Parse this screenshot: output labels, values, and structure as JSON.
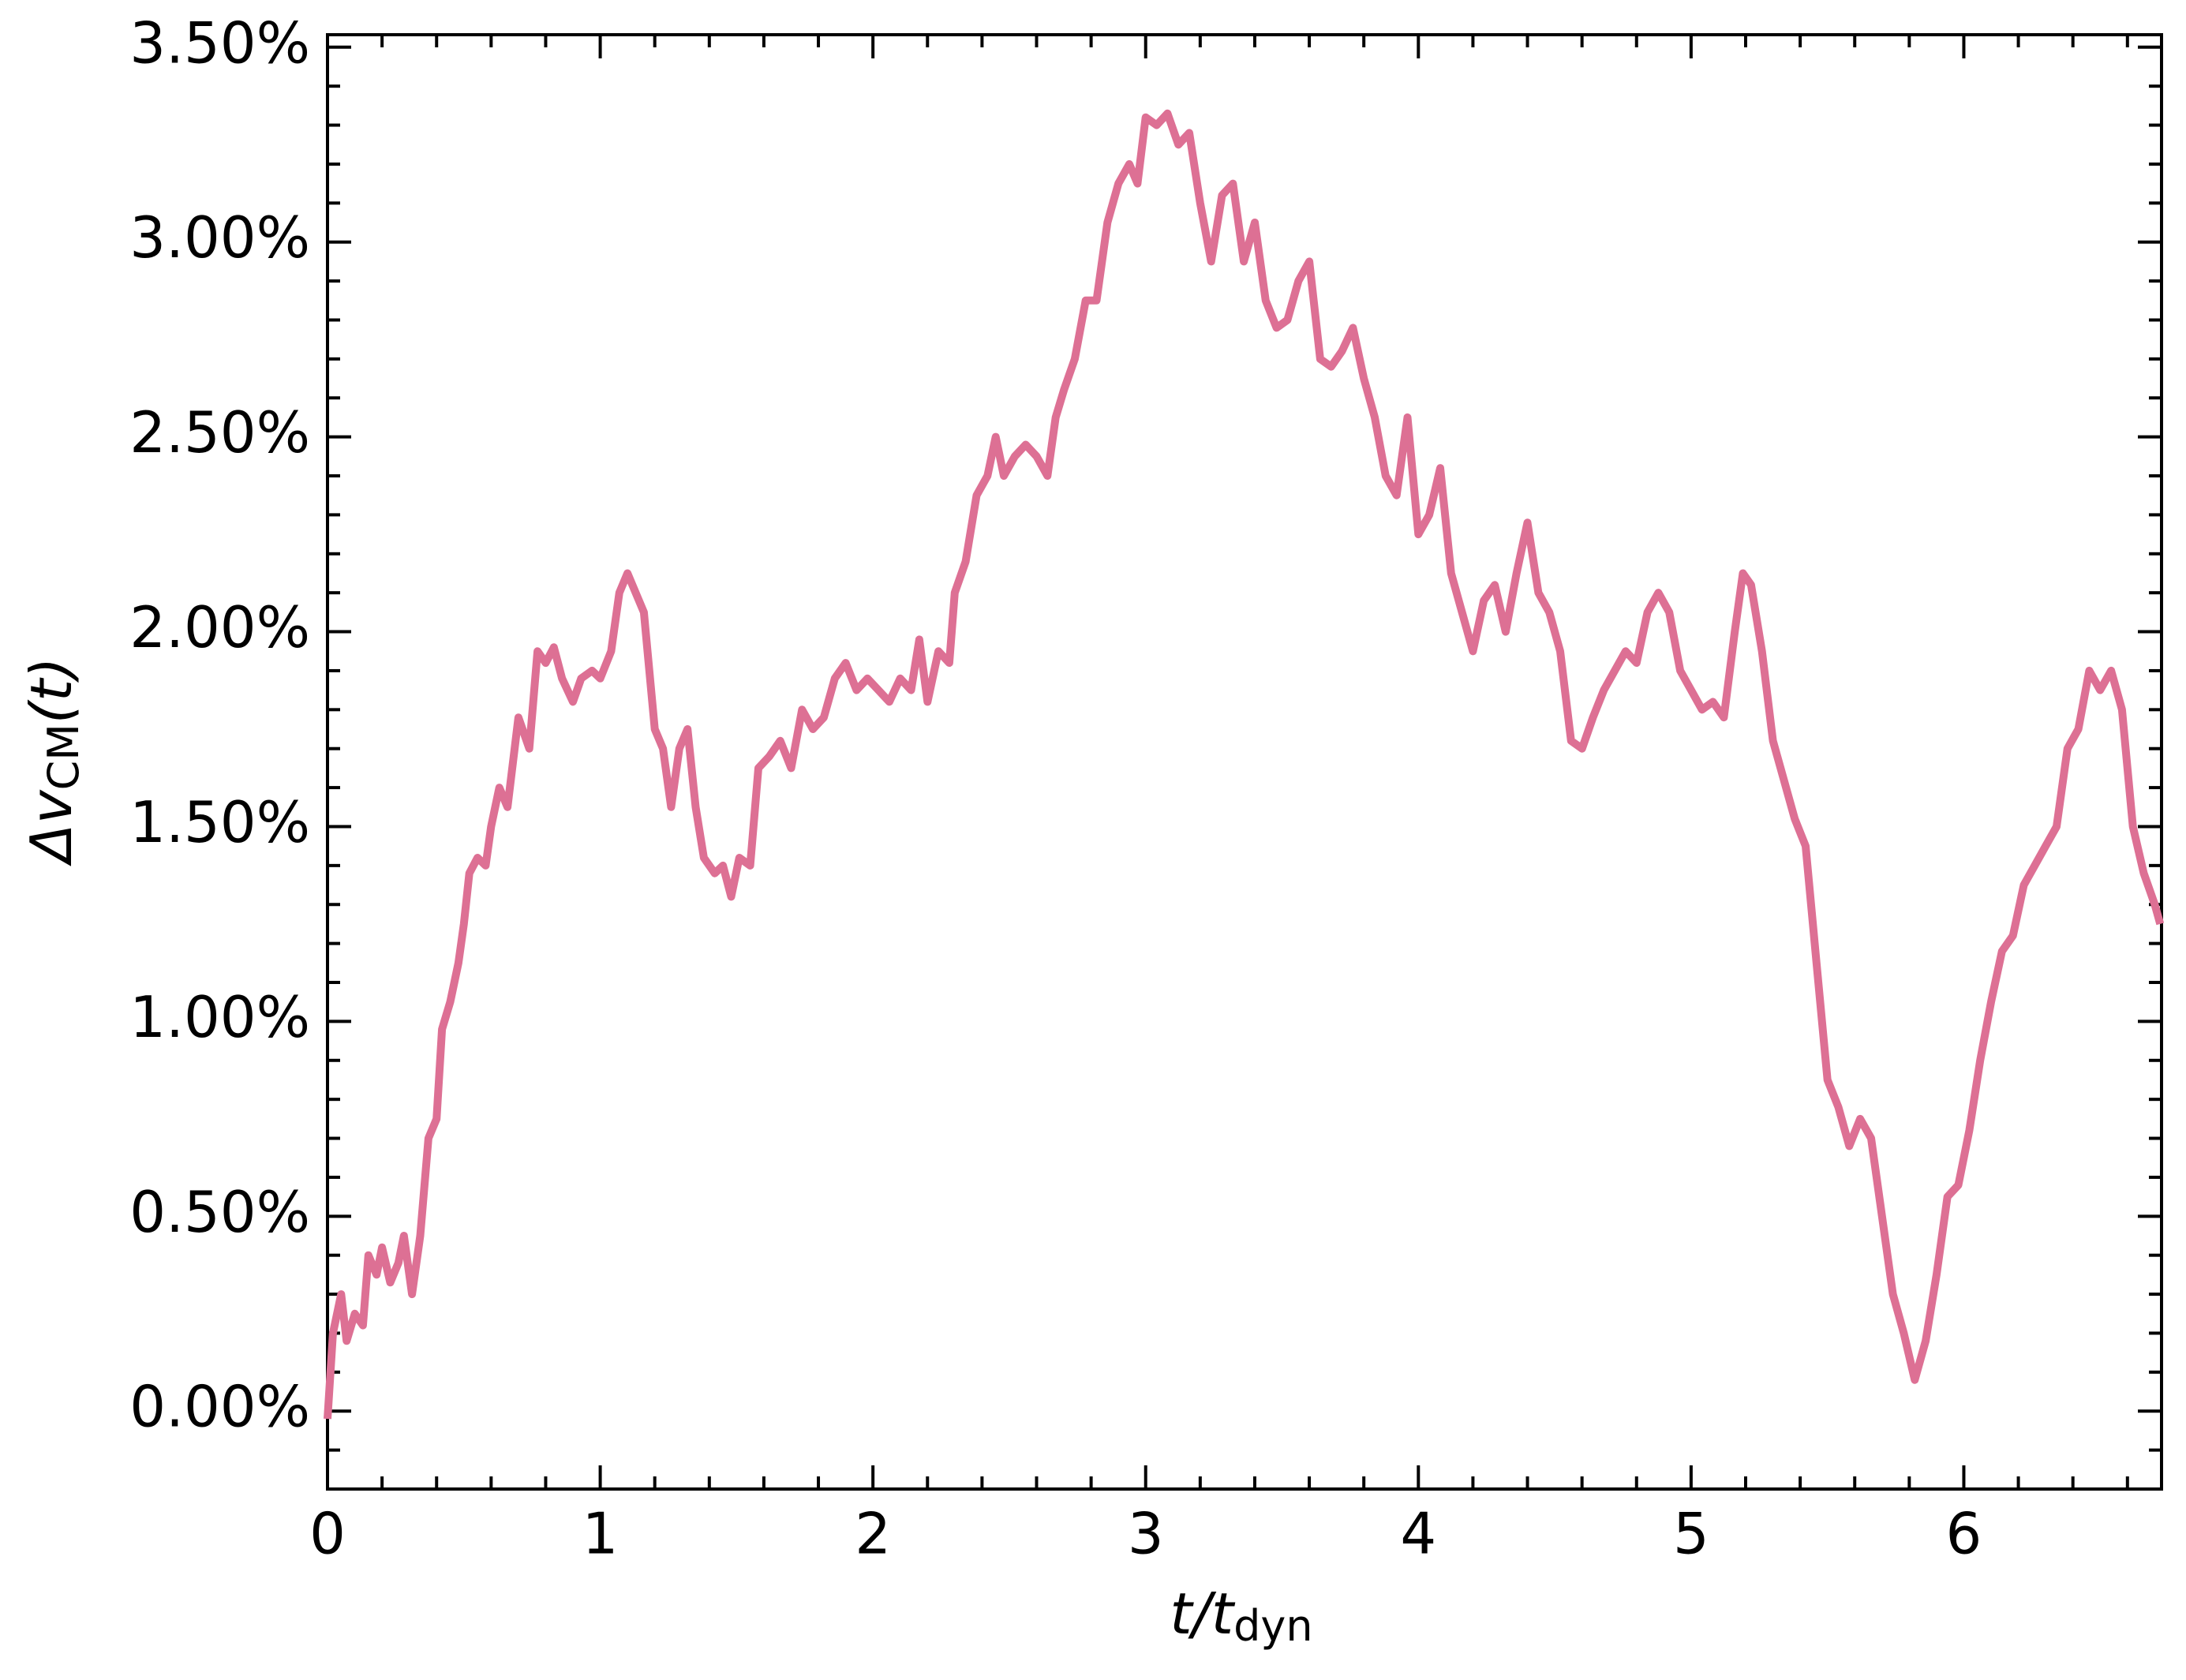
{
  "chart_data": {
    "type": "line",
    "xlabel": [
      "t/t",
      "dyn"
    ],
    "ylabel": [
      "Δv",
      "CM",
      "(t)"
    ],
    "x": [
      0,
      0.02,
      0.05,
      0.07,
      0.1,
      0.13,
      0.15,
      0.18,
      0.2,
      0.23,
      0.26,
      0.28,
      0.31,
      0.34,
      0.37,
      0.4,
      0.42,
      0.45,
      0.48,
      0.5,
      0.52,
      0.55,
      0.58,
      0.6,
      0.63,
      0.66,
      0.7,
      0.74,
      0.77,
      0.8,
      0.83,
      0.86,
      0.9,
      0.93,
      0.97,
      1.0,
      1.04,
      1.07,
      1.1,
      1.13,
      1.16,
      1.2,
      1.23,
      1.26,
      1.29,
      1.32,
      1.35,
      1.38,
      1.42,
      1.45,
      1.48,
      1.51,
      1.55,
      1.58,
      1.62,
      1.66,
      1.7,
      1.74,
      1.78,
      1.82,
      1.86,
      1.9,
      1.94,
      1.98,
      2.02,
      2.06,
      2.1,
      2.14,
      2.17,
      2.2,
      2.24,
      2.28,
      2.3,
      2.34,
      2.38,
      2.42,
      2.45,
      2.48,
      2.52,
      2.56,
      2.6,
      2.64,
      2.67,
      2.7,
      2.74,
      2.78,
      2.82,
      2.86,
      2.9,
      2.94,
      2.97,
      3.0,
      3.04,
      3.08,
      3.12,
      3.16,
      3.2,
      3.24,
      3.28,
      3.32,
      3.36,
      3.4,
      3.44,
      3.48,
      3.52,
      3.56,
      3.6,
      3.64,
      3.68,
      3.72,
      3.76,
      3.8,
      3.84,
      3.88,
      3.92,
      3.96,
      4.0,
      4.04,
      4.08,
      4.12,
      4.16,
      4.2,
      4.24,
      4.28,
      4.32,
      4.36,
      4.4,
      4.44,
      4.48,
      4.52,
      4.56,
      4.6,
      4.64,
      4.68,
      4.72,
      4.76,
      4.8,
      4.84,
      4.88,
      4.92,
      4.96,
      5.0,
      5.04,
      5.08,
      5.12,
      5.16,
      5.19,
      5.22,
      5.26,
      5.3,
      5.34,
      5.38,
      5.42,
      5.46,
      5.5,
      5.54,
      5.58,
      5.62,
      5.66,
      5.7,
      5.74,
      5.78,
      5.82,
      5.86,
      5.9,
      5.94,
      5.98,
      6.02,
      6.06,
      6.1,
      6.14,
      6.18,
      6.22,
      6.26,
      6.3,
      6.34,
      6.38,
      6.42,
      6.46,
      6.5,
      6.54,
      6.58,
      6.62,
      6.66,
      6.7,
      6.72
    ],
    "values": [
      -0.02,
      0.2,
      0.3,
      0.18,
      0.25,
      0.22,
      0.4,
      0.35,
      0.42,
      0.33,
      0.38,
      0.45,
      0.3,
      0.45,
      0.7,
      0.75,
      0.98,
      1.05,
      1.15,
      1.25,
      1.38,
      1.42,
      1.4,
      1.5,
      1.6,
      1.55,
      1.78,
      1.7,
      1.95,
      1.92,
      1.96,
      1.88,
      1.82,
      1.88,
      1.9,
      1.88,
      1.95,
      2.1,
      2.15,
      2.1,
      2.05,
      1.75,
      1.7,
      1.55,
      1.7,
      1.75,
      1.55,
      1.42,
      1.38,
      1.4,
      1.32,
      1.42,
      1.4,
      1.65,
      1.68,
      1.72,
      1.65,
      1.8,
      1.75,
      1.78,
      1.88,
      1.92,
      1.85,
      1.88,
      1.85,
      1.82,
      1.88,
      1.85,
      1.98,
      1.82,
      1.95,
      1.92,
      2.1,
      2.18,
      2.35,
      2.4,
      2.5,
      2.4,
      2.45,
      2.48,
      2.45,
      2.4,
      2.55,
      2.62,
      2.7,
      2.85,
      2.85,
      3.05,
      3.15,
      3.2,
      3.15,
      3.32,
      3.3,
      3.33,
      3.25,
      3.28,
      3.1,
      2.95,
      3.12,
      3.15,
      2.95,
      3.05,
      2.85,
      2.78,
      2.8,
      2.9,
      2.95,
      2.7,
      2.68,
      2.72,
      2.78,
      2.65,
      2.55,
      2.4,
      2.35,
      2.55,
      2.25,
      2.3,
      2.42,
      2.15,
      2.05,
      1.95,
      2.08,
      2.12,
      2.0,
      2.15,
      2.28,
      2.1,
      2.05,
      1.95,
      1.72,
      1.7,
      1.78,
      1.85,
      1.9,
      1.95,
      1.92,
      2.05,
      2.1,
      2.05,
      1.9,
      1.85,
      1.8,
      1.82,
      1.78,
      2.0,
      2.15,
      2.12,
      1.95,
      1.72,
      1.62,
      1.52,
      1.45,
      1.15,
      0.85,
      0.78,
      0.68,
      0.75,
      0.7,
      0.5,
      0.3,
      0.2,
      0.08,
      0.18,
      0.35,
      0.55,
      0.58,
      0.72,
      0.9,
      1.05,
      1.18,
      1.22,
      1.35,
      1.4,
      1.45,
      1.5,
      1.7,
      1.75,
      1.9,
      1.85,
      1.9,
      1.8,
      1.5,
      1.38,
      1.3,
      1.25
    ],
    "color": "#dd7094",
    "xlim": [
      0,
      6.725
    ],
    "ylim": [
      -0.2,
      3.532
    ],
    "xticks": [
      0,
      1,
      2,
      3,
      4,
      5,
      6
    ],
    "yticks": [
      {
        "value": 0,
        "label": "0.00%"
      },
      {
        "value": 0.5,
        "label": "0.50%"
      },
      {
        "value": 1,
        "label": "1.00%"
      },
      {
        "value": 1.5,
        "label": "1.50%"
      },
      {
        "value": 2,
        "label": "2.00%"
      },
      {
        "value": 2.5,
        "label": "2.50%"
      },
      {
        "value": 3,
        "label": "3.00%"
      },
      {
        "value": 3.5,
        "label": "3.50%"
      }
    ],
    "xminorticks": [
      0.2,
      0.4,
      0.6,
      0.8,
      1.2,
      1.4,
      1.6,
      1.8,
      2.2,
      2.4,
      2.6,
      2.8,
      3.2,
      3.4,
      3.6,
      3.8,
      4.2,
      4.4,
      4.6,
      4.8,
      5.2,
      5.4,
      5.6,
      5.8,
      6.2,
      6.4,
      6.6
    ],
    "yminorticks": [
      -0.1,
      0.1,
      0.2,
      0.3,
      0.4,
      0.6,
      0.7,
      0.8,
      0.9,
      1.1,
      1.2,
      1.3,
      1.4,
      1.6,
      1.7,
      1.8,
      1.9,
      2.1,
      2.2,
      2.3,
      2.4,
      2.6,
      2.7,
      2.8,
      2.9,
      3.1,
      3.2,
      3.3,
      3.4
    ],
    "grid": false
  }
}
